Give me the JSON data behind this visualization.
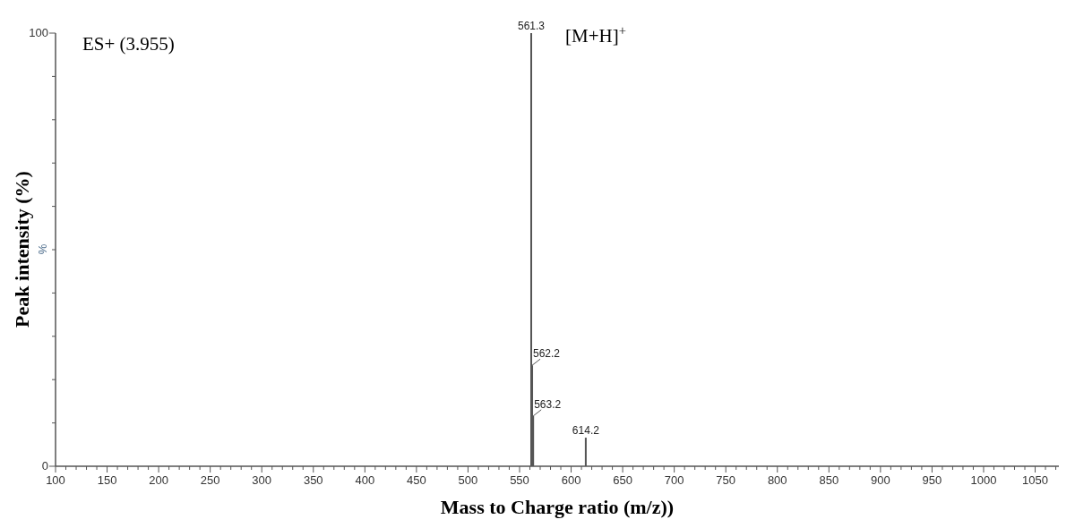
{
  "chart_data": {
    "type": "bar",
    "xlabel": "Mass to Charge ratio (m/z))",
    "ylabel": "Peak intensity (%)",
    "x": [
      561.3,
      562.2,
      563.2,
      614.2
    ],
    "values": [
      100,
      23.3,
      11.6,
      6.6
    ],
    "color": "#555555",
    "xlim": [
      100,
      1073
    ],
    "xticks": [
      100,
      {
        "value": 110,
        "label": null
      },
      {
        "value": 120,
        "label": null
      },
      {
        "value": 130,
        "label": null
      },
      {
        "value": 140,
        "label": null
      },
      150,
      {
        "value": 160,
        "label": null
      },
      {
        "value": 170,
        "label": null
      },
      {
        "value": 180,
        "label": null
      },
      {
        "value": 190,
        "label": null
      },
      200,
      {
        "value": 210,
        "label": null
      },
      {
        "value": 220,
        "label": null
      },
      {
        "value": 230,
        "label": null
      },
      {
        "value": 240,
        "label": null
      },
      250,
      {
        "value": 260,
        "label": null
      },
      {
        "value": 270,
        "label": null
      },
      {
        "value": 280,
        "label": null
      },
      {
        "value": 290,
        "label": null
      },
      300,
      {
        "value": 310,
        "label": null
      },
      {
        "value": 320,
        "label": null
      },
      {
        "value": 330,
        "label": null
      },
      {
        "value": 340,
        "label": null
      },
      350,
      {
        "value": 360,
        "label": null
      },
      {
        "value": 370,
        "label": null
      },
      {
        "value": 380,
        "label": null
      },
      {
        "value": 390,
        "label": null
      },
      400,
      {
        "value": 410,
        "label": null
      },
      {
        "value": 420,
        "label": null
      },
      {
        "value": 430,
        "label": null
      },
      {
        "value": 440,
        "label": null
      },
      450,
      {
        "value": 460,
        "label": null
      },
      {
        "value": 470,
        "label": null
      },
      {
        "value": 480,
        "label": null
      },
      {
        "value": 490,
        "label": null
      },
      500,
      {
        "value": 510,
        "label": null
      },
      {
        "value": 520,
        "label": null
      },
      {
        "value": 530,
        "label": null
      },
      {
        "value": 540,
        "label": null
      },
      550,
      {
        "value": 560,
        "label": null
      },
      {
        "value": 570,
        "label": null
      },
      {
        "value": 580,
        "label": null
      },
      {
        "value": 590,
        "label": null
      },
      600,
      {
        "value": 610,
        "label": null
      },
      {
        "value": 620,
        "label": null
      },
      {
        "value": 630,
        "label": null
      },
      {
        "value": 640,
        "label": null
      },
      650,
      {
        "value": 660,
        "label": null
      },
      {
        "value": 670,
        "label": null
      },
      {
        "value": 680,
        "label": null
      },
      {
        "value": 690,
        "label": null
      },
      700,
      {
        "value": 710,
        "label": null
      },
      {
        "value": 720,
        "label": null
      },
      {
        "value": 730,
        "label": null
      },
      {
        "value": 740,
        "label": null
      },
      750,
      {
        "value": 760,
        "label": null
      },
      {
        "value": 770,
        "label": null
      },
      {
        "value": 780,
        "label": null
      },
      {
        "value": 790,
        "label": null
      },
      800,
      {
        "value": 810,
        "label": null
      },
      {
        "value": 820,
        "label": null
      },
      {
        "value": 830,
        "label": null
      },
      {
        "value": 840,
        "label": null
      },
      850,
      {
        "value": 860,
        "label": null
      },
      {
        "value": 870,
        "label": null
      },
      {
        "value": 880,
        "label": null
      },
      {
        "value": 890,
        "label": null
      },
      900,
      {
        "value": 910,
        "label": null
      },
      {
        "value": 920,
        "label": null
      },
      {
        "value": 930,
        "label": null
      },
      {
        "value": 940,
        "label": null
      },
      950,
      {
        "value": 960,
        "label": null
      },
      {
        "value": 970,
        "label": null
      },
      {
        "value": 980,
        "label": null
      },
      {
        "value": 990,
        "label": null
      },
      1000,
      {
        "value": 1010,
        "label": null
      },
      {
        "value": 1020,
        "label": null
      },
      {
        "value": 1030,
        "label": null
      },
      {
        "value": 1040,
        "label": null
      },
      1050,
      {
        "value": 1060,
        "label": null
      },
      {
        "value": 1070,
        "label": null
      }
    ],
    "ylim": [
      0,
      100
    ],
    "yticks": [
      0,
      {
        "value": 10,
        "label": null
      },
      {
        "value": 20,
        "label": null
      },
      {
        "value": 30,
        "label": null
      },
      {
        "value": 40,
        "label": null
      },
      {
        "value": 50,
        "label": null
      },
      {
        "value": 60,
        "label": null
      },
      {
        "value": 70,
        "label": null
      },
      {
        "value": 80,
        "label": null
      },
      {
        "value": 90,
        "label": null
      },
      100
    ],
    "annotations": [
      "ES+ (3.955)",
      "[M+H]$^{+}$",
      "%",
      {
        "text": "561.3",
        "x": 561.3,
        "y": 100
      },
      {
        "text": "562.2",
        "x": 562.2,
        "y": 23.3
      },
      {
        "text": "563.2",
        "x": 563.2,
        "y": 11.6
      },
      {
        "text": "614.2",
        "x": 614.2,
        "y": 6.6
      }
    ]
  }
}
